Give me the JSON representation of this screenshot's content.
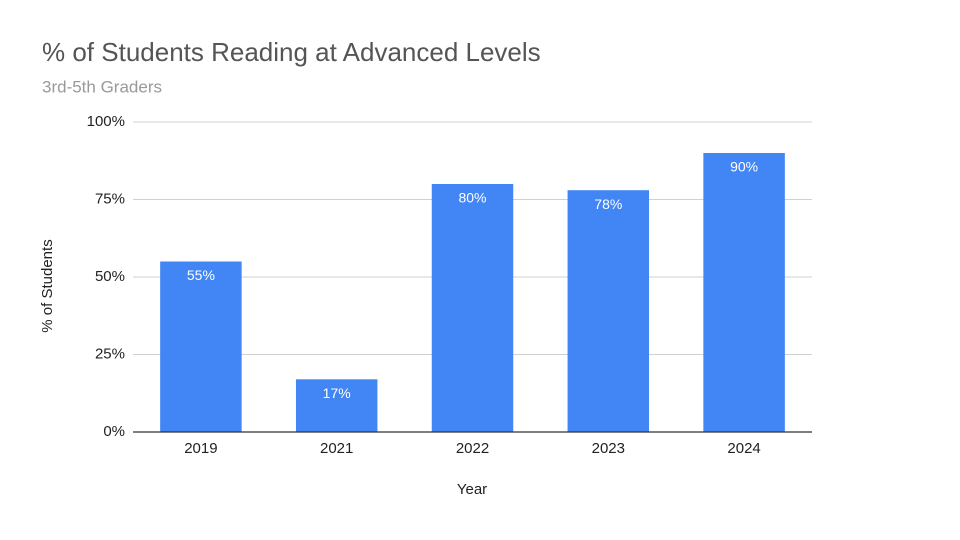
{
  "chart_data": {
    "type": "bar",
    "title": "% of Students Reading at Advanced Levels",
    "subtitle": "3rd-5th Graders",
    "x_label": "Year",
    "y_label": "% of Students",
    "categories": [
      "2019",
      "2021",
      "2022",
      "2023",
      "2024"
    ],
    "values": [
      55,
      17,
      80,
      78,
      90
    ],
    "value_labels": [
      "55%",
      "17%",
      "80%",
      "78%",
      "90%"
    ],
    "color": "#4285f4",
    "ylim": [
      0,
      100
    ],
    "yticks": [
      {
        "value": 0,
        "label": "0%"
      },
      {
        "value": 25,
        "label": "25%"
      },
      {
        "value": 50,
        "label": "50%"
      },
      {
        "value": 75,
        "label": "75%"
      },
      {
        "value": 100,
        "label": "100%"
      }
    ],
    "grid": true
  }
}
